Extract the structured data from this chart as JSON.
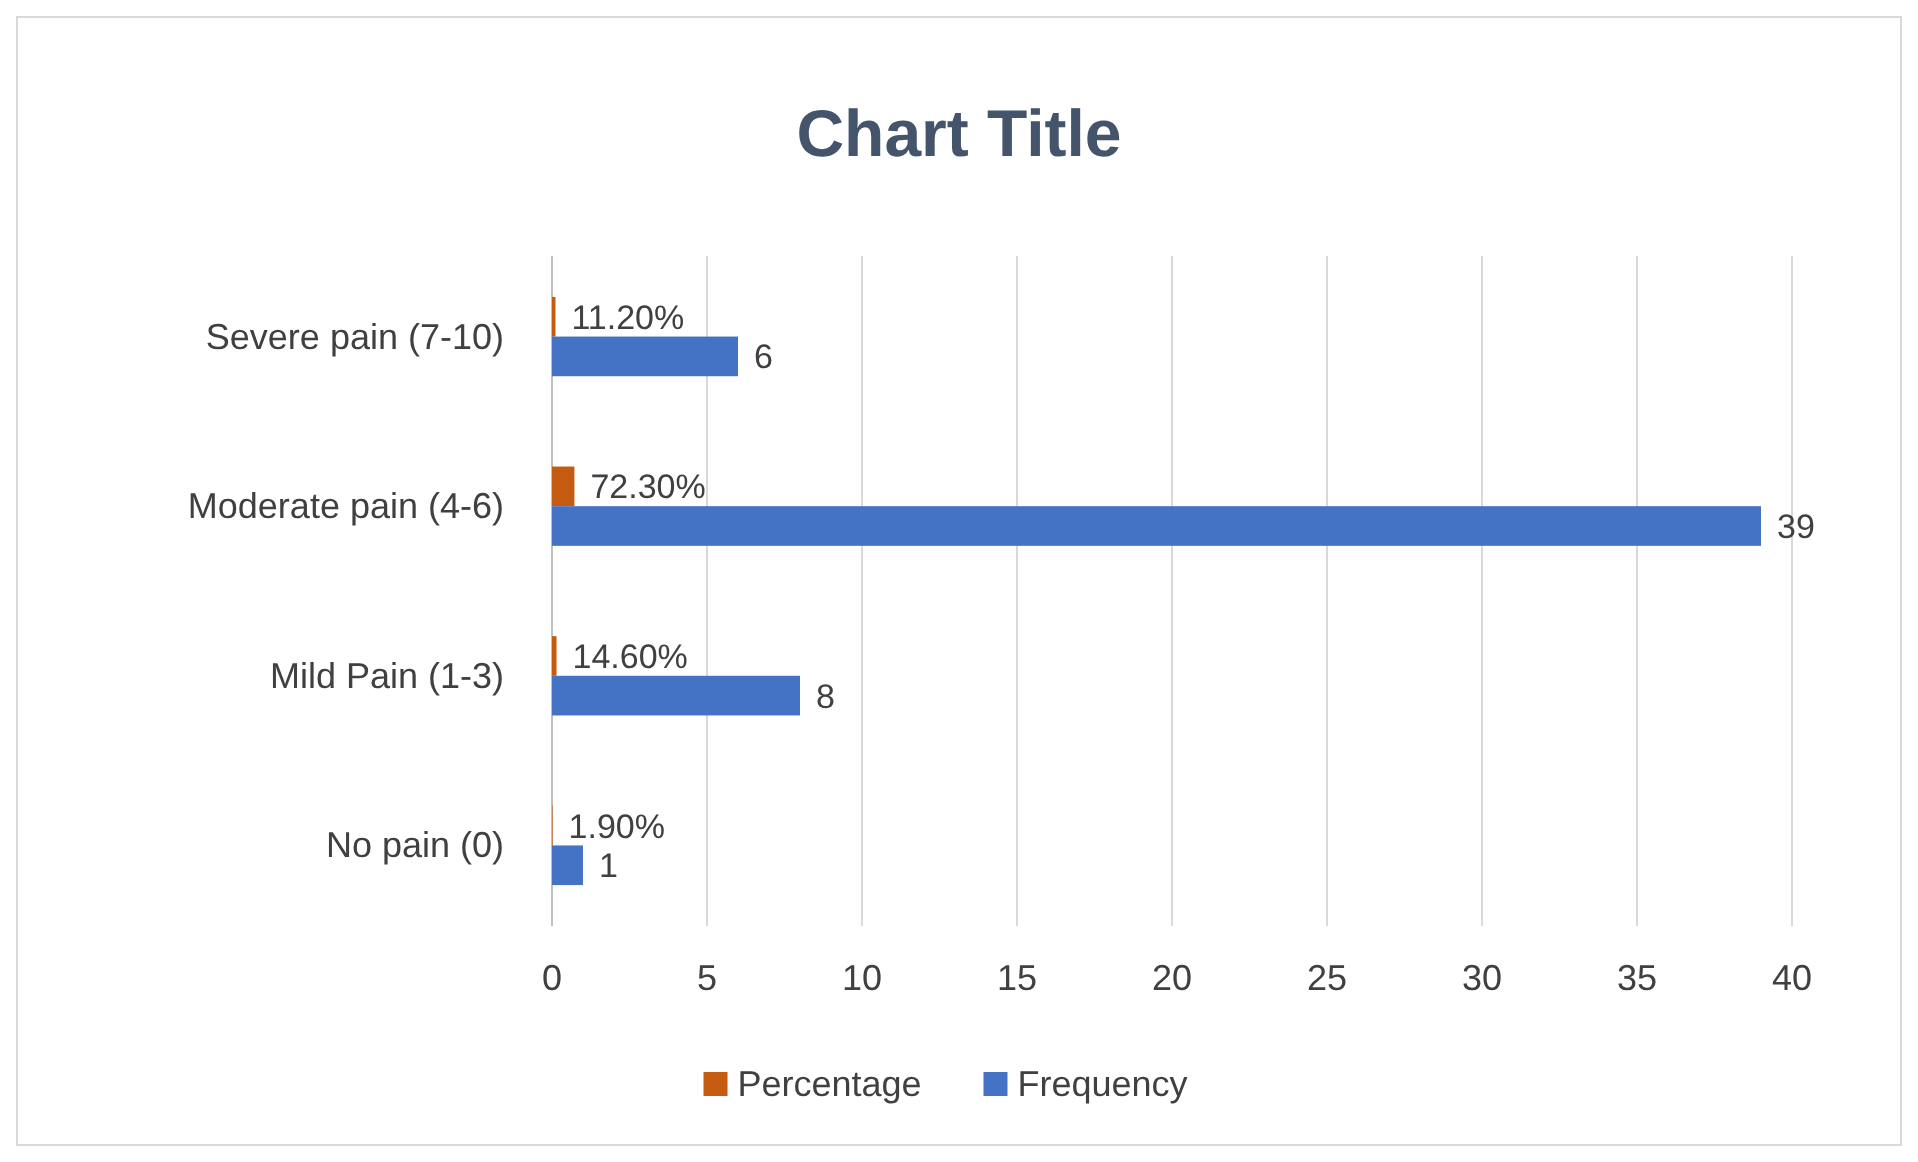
{
  "chart_data": {
    "type": "bar",
    "orientation": "horizontal",
    "title": "Chart Title",
    "categories": [
      "Severe pain (7-10)",
      "Moderate pain (4-6)",
      "Mild Pain (1-3)",
      "No pain (0)"
    ],
    "series": [
      {
        "name": "Percentage",
        "color": "#c55a11",
        "values": [
          0.112,
          0.723,
          0.146,
          0.019
        ],
        "value_labels": [
          "11.20%",
          "72.30%",
          "14.60%",
          "1.90%"
        ]
      },
      {
        "name": "Frequency",
        "color": "#4472c4",
        "values": [
          6,
          39,
          8,
          1
        ],
        "value_labels": [
          "6",
          "39",
          "8",
          "1"
        ]
      }
    ],
    "xlim": [
      0,
      40
    ],
    "xticks": [
      0,
      5,
      10,
      15,
      20,
      25,
      30,
      35,
      40
    ],
    "grid": "x",
    "legend": "bottom"
  }
}
